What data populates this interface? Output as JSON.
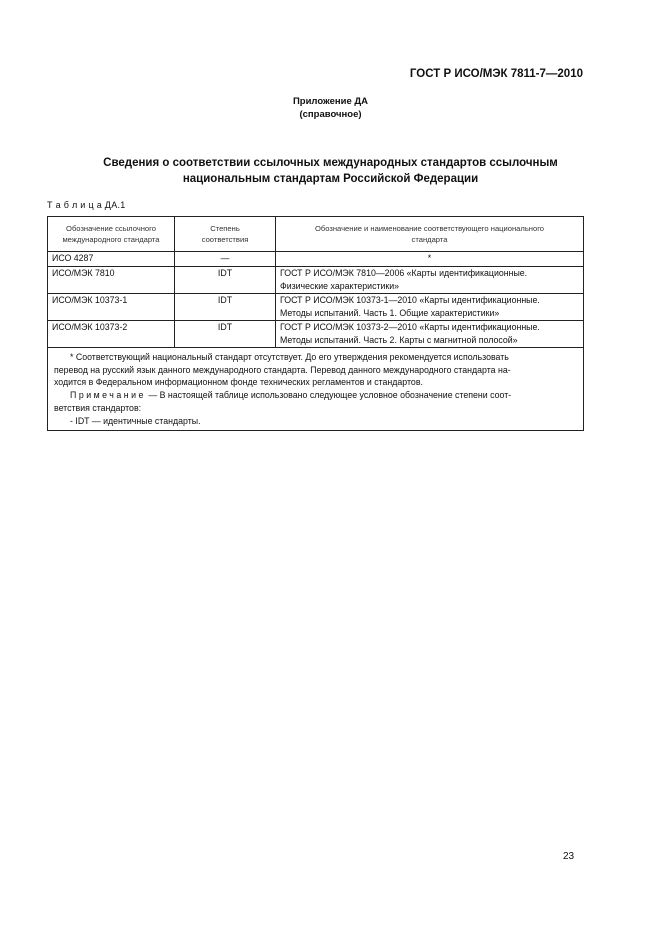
{
  "header": {
    "doc_id": "ГОСТ Р ИСО/МЭК 7811-7—2010"
  },
  "appendix": {
    "title": "Приложение ДА",
    "subtitle": "(справочное)"
  },
  "section_title": [
    "Сведения о соответствии ссылочных международных стандартов ссылочным",
    "национальным стандартам Российской Федерации"
  ],
  "table": {
    "caption": "Т а б л и ц а ДА.1",
    "headers": [
      [
        "Обозначение ссылочного",
        "международного стандарта"
      ],
      [
        "Степень",
        "соответствия"
      ],
      [
        "Обозначение и наименование соответствующего национального",
        "стандарта"
      ]
    ],
    "rows": [
      {
        "intl": "ИСО 4287",
        "degree": "—",
        "national": [
          "*"
        ]
      },
      {
        "intl": "ИСО/МЭК 7810",
        "degree": "IDT",
        "national": [
          "ГОСТ Р ИСО/МЭК 7810—2006 «Карты идентификационные.",
          "Физические характеристики»"
        ]
      },
      {
        "intl": "ИСО/МЭК 10373-1",
        "degree": "IDT",
        "national": [
          "ГОСТ Р ИСО/МЭК 10373-1—2010 «Карты идентификационные.",
          "Методы испытаний. Часть 1. Общие характеристики»"
        ]
      },
      {
        "intl": "ИСО/МЭК 10373-2",
        "degree": "IDT",
        "national": [
          "ГОСТ Р ИСО/МЭК 10373-2—2010 «Карты идентификационные.",
          "Методы испытаний. Часть 2. Карты с магнитной полосой»"
        ]
      }
    ],
    "footnote": [
      "* Соответствующий национальный стандарт отсутствует. До его утверждения рекомендуется использовать",
      "перевод на русский язык данного международного стандарта. Перевод данного международного стандарта на-",
      "ходится в Федеральном информационном фонде технических регламентов и стандартов."
    ],
    "note_label": "Примечание",
    "note": [
      "— В настоящей таблице использовано следующее условное обозначение степени соот-",
      "ветствия стандартов:",
      "- IDT — идентичные стандарты."
    ]
  },
  "page_number": "23"
}
